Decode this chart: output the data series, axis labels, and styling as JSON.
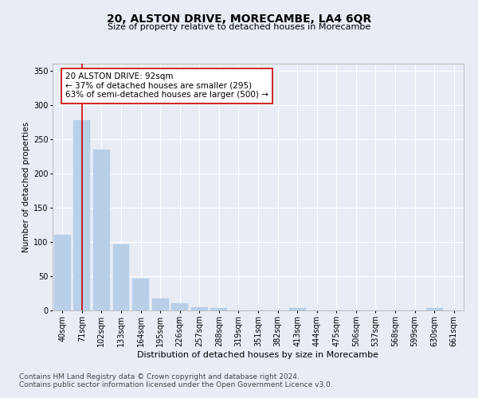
{
  "title": "20, ALSTON DRIVE, MORECAMBE, LA4 6QR",
  "subtitle": "Size of property relative to detached houses in Morecambe",
  "xlabel": "Distribution of detached houses by size in Morecambe",
  "ylabel": "Number of detached properties",
  "categories": [
    "40sqm",
    "71sqm",
    "102sqm",
    "133sqm",
    "164sqm",
    "195sqm",
    "226sqm",
    "257sqm",
    "288sqm",
    "319sqm",
    "351sqm",
    "382sqm",
    "413sqm",
    "444sqm",
    "475sqm",
    "506sqm",
    "537sqm",
    "568sqm",
    "599sqm",
    "630sqm",
    "661sqm"
  ],
  "values": [
    110,
    278,
    235,
    96,
    47,
    18,
    10,
    5,
    4,
    0,
    0,
    0,
    3,
    0,
    0,
    0,
    0,
    0,
    0,
    3,
    0
  ],
  "bar_color": "#b8cfe8",
  "bar_edgecolor": "#b8cfe8",
  "redline_index": 1,
  "annotation_text": "20 ALSTON DRIVE: 92sqm\n← 37% of detached houses are smaller (295)\n63% of semi-detached houses are larger (500) →",
  "annotation_box_facecolor": "#ffffff",
  "annotation_box_edgecolor": "#cc0000",
  "ylim": [
    0,
    360
  ],
  "yticks": [
    0,
    50,
    100,
    150,
    200,
    250,
    300,
    350
  ],
  "background_color": "#e8edf5",
  "plot_bg_color": "#e8edf5",
  "grid_color": "#ffffff",
  "footer_line1": "Contains HM Land Registry data © Crown copyright and database right 2024.",
  "footer_line2": "Contains public sector information licensed under the Open Government Licence v3.0.",
  "title_fontsize": 10,
  "subtitle_fontsize": 8,
  "xlabel_fontsize": 8,
  "ylabel_fontsize": 7.5,
  "tick_fontsize": 7,
  "annotation_fontsize": 7.5,
  "footer_fontsize": 6.5
}
